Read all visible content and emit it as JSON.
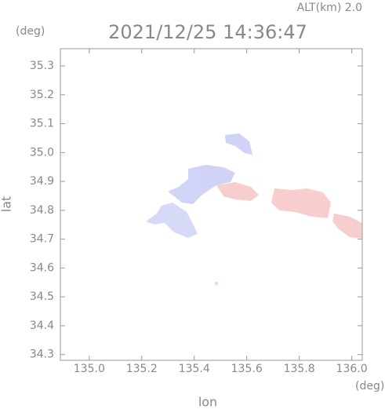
{
  "chart_data": {
    "type": "map",
    "title": "2021/12/25 14:36:47",
    "subtitle": "ALT(km) 2.0",
    "x_label": "lon",
    "y_label": "lat",
    "x_unit": "(deg)",
    "y_unit": "(deg)",
    "xlim": [
      134.89,
      136.04
    ],
    "xticks": [
      {
        "value": 135,
        "label": "135.0"
      },
      135.2,
      135.4,
      135.6,
      135.8,
      {
        "value": 136,
        "label": "136.0"
      }
    ],
    "ylim": [
      34.28,
      35.36
    ],
    "yticks": [
      34.3,
      34.4,
      34.5,
      34.6,
      34.7,
      34.8,
      34.9,
      {
        "value": 35,
        "label": "35.0"
      },
      35.1,
      35.2,
      35.3
    ]
  }
}
